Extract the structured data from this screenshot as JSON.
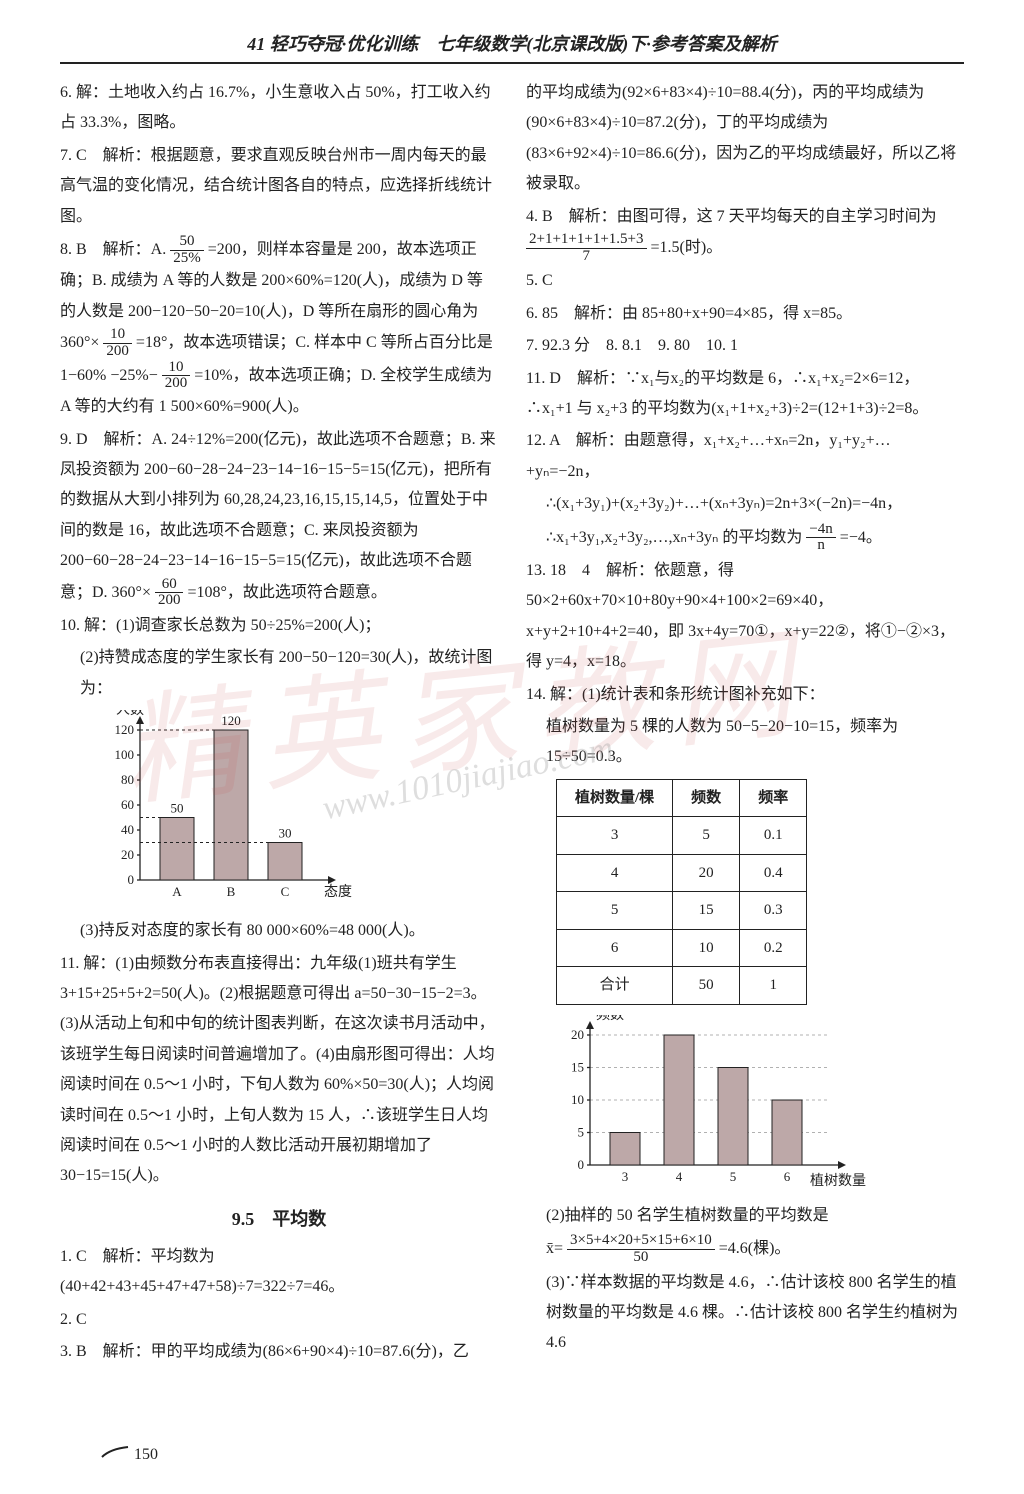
{
  "header": "41 轻巧夺冠·优化训练　七年级数学(北京课改版)下·参考答案及解析",
  "left": {
    "p6": "6. 解：土地收入约占 16.7%，小生意收入占 50%，打工收入约占 33.3%，图略。",
    "p7": "7. C　解析：根据题意，要求直观反映台州市一周内每天的最高气温的变化情况，结合统计图各自的特点，应选择折线统计图。",
    "p8a": "8. B　解析：A.",
    "p8a_frac_num": "50",
    "p8a_frac_den": "25%",
    "p8a_tail": "=200，则样本容量是 200，故本选项正确；B. 成绩为 A 等的人数是 200×60%=120(人)，成绩为 D 等的人数是 200−120−50−20=10(人)，D 等所在扇形的圆心角为 360°×",
    "p8b_frac_num": "10",
    "p8b_frac_den": "200",
    "p8b_tail": "=18°，故本选项错误；C. 样本中 C 等所占百分比是 1−60%",
    "p8c": "−25%−",
    "p8c_frac_num": "10",
    "p8c_frac_den": "200",
    "p8c_tail": "=10%，故本选项正确；D. 全校学生成绩为 A 等的大约有 1 500×60%=900(人)。",
    "p9a": "9. D　解析：A. 24÷12%=200(亿元)，故此选项不合题意；B. 来凤投资额为 200−60−28−24−23−14−16−15−5=15(亿元)，把所有的数据从大到小排列为 60,28,24,23,16,15,15,14,5，位置处于中间的数是 16，故此选项不合题意；C. 来凤投资额为 200−60−28−24−23−14−16−15−5=15(亿元)，故此选项不合题意；D. 360°×",
    "p9_frac_num": "60",
    "p9_frac_den": "200",
    "p9_tail": "=108°，故此选项符合题意。",
    "p10a": "10. 解：(1)调查家长总数为 50÷25%=200(人)；",
    "p10b": "(2)持赞成态度的学生家长有 200−50−120=30(人)，故统计图为：",
    "chart1": {
      "ylabel": "人数",
      "xlabel": "态度",
      "yticks": [
        0,
        20,
        40,
        60,
        80,
        100,
        120
      ],
      "bars": [
        {
          "label": "A",
          "value": 50,
          "valueLabel": "50"
        },
        {
          "label": "B",
          "value": 120,
          "valueLabel": "120"
        },
        {
          "label": "C",
          "value": 30,
          "valueLabel": "30"
        }
      ]
    },
    "p10c": "(3)持反对态度的家长有 80 000×60%=48 000(人)。",
    "p11": "11. 解：(1)由频数分布表直接得出：九年级(1)班共有学生 3+15+25+5+2=50(人)。(2)根据题意可得出 a=50−30−15−2=3。(3)从活动上旬和中旬的统计图表判断，在这次读书月活动中，该班学生每日阅读时间普遍增加了。(4)由扇形图可得出：人均阅读时间在 0.5～1 小时，下旬人数为 60%×50=30(人)；人均阅读时间在 0.5～1 小时，上旬人数为 15 人，∴该班学生日人均阅读时间在 0.5～1 小时的人数比活动开展初期增加了 30−15=15(人)。",
    "sectionTitle": "9.5　平均数",
    "p1c": "1. C　解析：平均数为(40+42+43+45+47+47+58)÷7=322÷7=46。",
    "p2c": "2. C",
    "p3b": "3. B　解析：甲的平均成绩为(86×6+90×4)÷10=87.6(分)，乙"
  },
  "right": {
    "r3cont": "的平均成绩为(92×6+83×4)÷10=88.4(分)，丙的平均成绩为(90×6+83×4)÷10=87.2(分)，丁的平均成绩为(83×6+92×4)÷10=86.6(分)，因为乙的平均成绩最好，所以乙将被录取。",
    "r4a": "4. B　解析：由图可得，这 7 天平均每天的自主学习时间为",
    "r4_frac_num": "2+1+1+1+1+1.5+3",
    "r4_frac_den": "7",
    "r4_tail": "=1.5(时)。",
    "r5": "5. C",
    "r6": "6. 85　解析：由 85+80+x+90=4×85，得 x=85。",
    "r7_10": "7. 92.3 分　8. 8.1　9. 80　10. 1",
    "r11": "11. D　解析：∵x₁与x₂的平均数是 6，∴x₁+x₂=2×6=12，∴x₁+1 与 x₂+3 的平均数为(x₁+1+x₂+3)÷2=(12+1+3)÷2=8。",
    "r12a": "12. A　解析：由题意得，x₁+x₂+…+xₙ=2n，y₁+y₂+…+yₙ=−2n，",
    "r12b": "∴(x₁+3y₁)+(x₂+3y₂)+…+(xₙ+3yₙ)=2n+3×(−2n)=−4n，",
    "r12c": "∴x₁+3y₁,x₂+3y₂,…,xₙ+3yₙ 的平均数为",
    "r12_frac_num": "−4n",
    "r12_frac_den": "n",
    "r12_tail": "=−4。",
    "r13": "13. 18　4　解析：依题意，得 50×2+60x+70×10+80y+90×4+100×2=69×40，x+y+2+10+4+2=40，即 3x+4y=70①，x+y=22②，将①−②×3，得 y=4，x=18。",
    "r14a": "14. 解：(1)统计表和条形统计图补充如下：",
    "r14b": "植树数量为 5 棵的人数为 50−5−20−10=15，频率为 15÷50=0.3。",
    "table": {
      "headers": [
        "植树数量/棵",
        "频数",
        "频率"
      ],
      "rows": [
        [
          "3",
          "5",
          "0.1"
        ],
        [
          "4",
          "20",
          "0.4"
        ],
        [
          "5",
          "15",
          "0.3"
        ],
        [
          "6",
          "10",
          "0.2"
        ],
        [
          "合计",
          "50",
          "1"
        ]
      ]
    },
    "chart2": {
      "ylabel": "频数",
      "xlabel": "植树数量/棵",
      "yticks": [
        0,
        5,
        10,
        15,
        20
      ],
      "bars": [
        {
          "label": "3",
          "value": 5
        },
        {
          "label": "4",
          "value": 20
        },
        {
          "label": "5",
          "value": 15
        },
        {
          "label": "6",
          "value": 10
        }
      ]
    },
    "r14c": "(2)抽样的 50 名学生植树数量的平均数是",
    "r14_frac_num": "3×5+4×20+5×15+6×10",
    "r14_frac_den": "50",
    "r14_tail": "=4.6(棵)。",
    "r14d": "(3)∵样本数据的平均数是 4.6，∴估计该校 800 名学生的植树数量的平均数是 4.6 棵。∴估计该校 800 名学生约植树为 4.6",
    "xbar": "x̄="
  },
  "pagenum": "150",
  "watermark": "精英家教网",
  "watermark2": "www.1010jiajiao.com"
}
